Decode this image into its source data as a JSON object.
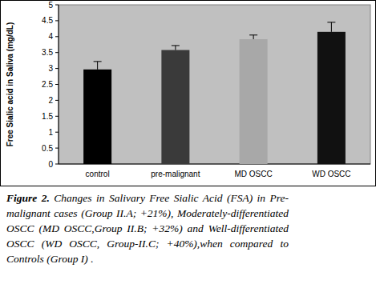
{
  "chart_data": {
    "type": "bar",
    "y_label": "Free Sialic acid in Saliva (mg/dL)",
    "categories": [
      "control",
      "pre-malignant",
      "MD OSCC",
      "WD OSCC"
    ],
    "values": [
      2.97,
      3.58,
      3.92,
      4.15
    ],
    "errors": [
      0.25,
      0.14,
      0.13,
      0.3
    ],
    "colors": [
      "#000000",
      "#3a3a3a",
      "#a8a8a8",
      "#111111"
    ],
    "ylim": [
      0,
      5
    ],
    "yticks": [
      0,
      0.5,
      1,
      1.5,
      2,
      2.5,
      3,
      3.5,
      4,
      4.5,
      5
    ],
    "grid": false,
    "caption_label": "Figure 2.",
    "caption": "Changes in Salivary Free Sialic Acid (FSA) in Pre-malignant cases (Group II.A; +21%), Moderately-differentiated OSCC (MD OSCC,Group II.B; +32%) and Well-differentiated OSCC (WD OSCC, Group-II.C; +40%),when compared to Controls (Group I) ."
  }
}
